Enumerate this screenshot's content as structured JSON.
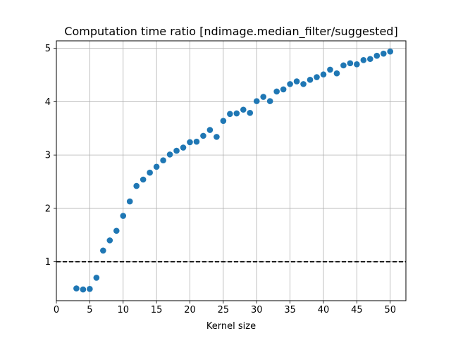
{
  "chart_data": {
    "type": "scatter",
    "title": "Computation time ratio [ndimage.median_filter/suggested]",
    "xlabel": "Kernel size",
    "ylabel": "",
    "xlim": [
      0,
      52.35
    ],
    "ylim": [
      0.27,
      5.14
    ],
    "xticks": [
      0,
      5,
      10,
      15,
      20,
      25,
      30,
      35,
      40,
      45,
      50
    ],
    "yticks": [
      1,
      2,
      3,
      4,
      5
    ],
    "grid": true,
    "marker_color": "#1f77b4",
    "reference_line": {
      "y": 1,
      "style": "dashed",
      "color": "#000000"
    },
    "x": [
      3,
      4,
      5,
      6,
      7,
      8,
      9,
      10,
      11,
      12,
      13,
      14,
      15,
      16,
      17,
      18,
      19,
      20,
      21,
      22,
      23,
      24,
      25,
      26,
      27,
      28,
      29,
      30,
      31,
      32,
      33,
      34,
      35,
      36,
      37,
      38,
      39,
      40,
      41,
      42,
      43,
      44,
      45,
      46,
      47,
      48,
      49,
      50
    ],
    "y": [
      0.5,
      0.48,
      0.49,
      0.7,
      1.21,
      1.4,
      1.58,
      1.86,
      2.13,
      2.42,
      2.54,
      2.67,
      2.78,
      2.9,
      3.01,
      3.08,
      3.14,
      3.24,
      3.25,
      3.36,
      3.47,
      3.34,
      3.64,
      3.77,
      3.78,
      3.85,
      3.79,
      4.01,
      4.09,
      4.01,
      4.19,
      4.23,
      4.33,
      4.38,
      4.33,
      4.41,
      4.46,
      4.51,
      4.6,
      4.53,
      4.68,
      4.72,
      4.7,
      4.78,
      4.8,
      4.86,
      4.9,
      4.94
    ]
  }
}
